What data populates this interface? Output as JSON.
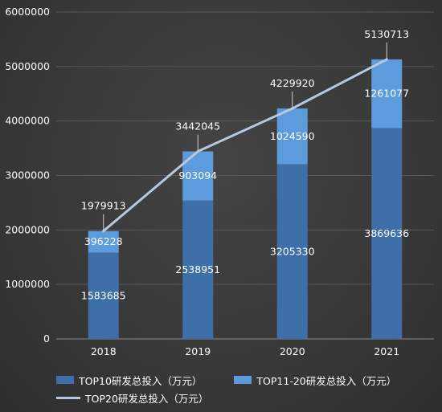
{
  "chart_data": {
    "type": "bar",
    "stacked": true,
    "categories": [
      "2018",
      "2019",
      "2020",
      "2021"
    ],
    "series": [
      {
        "name": "TOP10研发总投入（万元）",
        "kind": "bar",
        "values": [
          1583685,
          2538951,
          3205330,
          3869636
        ],
        "color": "#3f6fa8"
      },
      {
        "name": "TOP11-20研发总投入（万元）",
        "kind": "bar",
        "values": [
          396228,
          903094,
          1024590,
          1261077
        ],
        "color": "#5c9bdc"
      },
      {
        "name": "TOP20研发总投入（万元）",
        "kind": "line",
        "values": [
          1979913,
          3442045,
          4229920,
          5130713
        ],
        "color": "#b8c9df"
      }
    ],
    "ylim": [
      0,
      6000000
    ],
    "yticks": [
      0,
      1000000,
      2000000,
      3000000,
      4000000,
      5000000,
      6000000
    ],
    "grid": true,
    "legend": "bottom"
  }
}
